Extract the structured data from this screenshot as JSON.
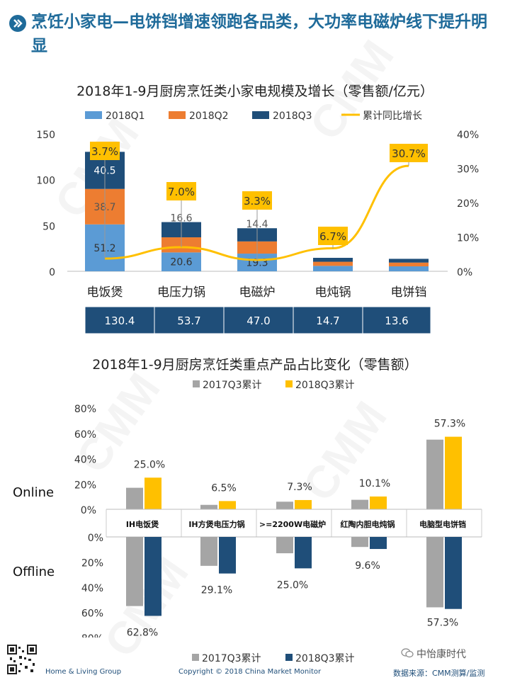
{
  "page": {
    "title": "烹饪小家电—电饼铛增速领跑各品类，大功率电磁炉线下提升明显"
  },
  "colors": {
    "title": "#1f6b9a",
    "q1": "#5b9bd5",
    "q2": "#ed7d31",
    "q3": "#1f4e79",
    "growth": "#ffc000",
    "gray": "#a5a5a5",
    "navy": "#1f4e79",
    "yellow": "#ffc000",
    "total_bg": "#1f4e79"
  },
  "chart_data": [
    {
      "type": "bar",
      "stacked": true,
      "title": "2018年1-9月厨房烹饪类小家电规模及增长（零售额/亿元）",
      "categories": [
        "电饭煲",
        "电压力锅",
        "电磁炉",
        "电炖锅",
        "电饼铛"
      ],
      "series": [
        {
          "name": "2018Q1",
          "values": [
            51.2,
            20.6,
            19.3,
            5.9,
            5.4
          ],
          "labels": [
            "51.2",
            "20.6",
            "19.3",
            "",
            ""
          ]
        },
        {
          "name": "2018Q2",
          "values": [
            38.7,
            16.5,
            13.3,
            4.5,
            4.1
          ],
          "labels": [
            "38.7",
            "",
            "",
            "",
            ""
          ]
        },
        {
          "name": "2018Q3",
          "values": [
            40.5,
            16.6,
            14.4,
            4.3,
            4.1
          ],
          "labels": [
            "40.5",
            "16.6",
            "14.4",
            "",
            ""
          ]
        }
      ],
      "line": {
        "name": "累计同比增长",
        "values": [
          3.7,
          7.0,
          3.3,
          6.7,
          30.7
        ],
        "labels": [
          "3.7%",
          "7.0%",
          "3.3%",
          "6.7%",
          "30.7%"
        ]
      },
      "totals": [
        "130.4",
        "53.7",
        "47.0",
        "14.7",
        "13.6"
      ],
      "ylim": [
        0,
        150
      ],
      "yticks": [
        "0",
        "50",
        "100",
        "150"
      ],
      "y2lim": [
        0,
        40
      ],
      "y2ticks": [
        "0%",
        "10%",
        "20%",
        "30%",
        "40%"
      ],
      "legend": "top"
    },
    {
      "type": "bar",
      "title": "2018年1-9月厨房烹饪类重点产品占比变化（零售额）",
      "categories": [
        "IH电饭煲",
        "IH方煲电压力锅",
        ">=2200W电磁炉",
        "红陶内胆电炖锅",
        "电脑型电饼铛"
      ],
      "online": {
        "label": "Online",
        "series": [
          {
            "name": "2017Q3累计",
            "values": [
              17.0,
              3.5,
              6.0,
              7.5,
              55.0
            ]
          },
          {
            "name": "2018Q3累计",
            "values": [
              25.0,
              6.5,
              7.3,
              10.1,
              57.3
            ],
            "labels": [
              "25.0%",
              "6.5%",
              "7.3%",
              "10.1%",
              "57.3%"
            ]
          }
        ],
        "yticks": [
          "0%",
          "20%",
          "40%",
          "60%",
          "80%"
        ],
        "ylim": [
          0,
          80
        ]
      },
      "offline": {
        "label": "Offline",
        "series": [
          {
            "name": "2017Q3累计",
            "values": [
              55.0,
              23.0,
              13.0,
              8.0,
              56.0
            ]
          },
          {
            "name": "2018Q3累计",
            "values": [
              62.8,
              29.1,
              25.0,
              9.6,
              57.3
            ],
            "labels": [
              "62.8%",
              "29.1%",
              "25.0%",
              "9.6%",
              "57.3%"
            ]
          }
        ],
        "yticks": [
          "0%",
          "20%",
          "40%",
          "60%",
          "80%"
        ],
        "ylim": [
          0,
          80
        ]
      },
      "legend": "top and bottom"
    }
  ],
  "footer": {
    "left": "Home & Living Group",
    "copyright": "Copyright © 2018 China Market Monitor",
    "brand": "中怡康时代",
    "source": "数据来源：CMM测算/监测"
  },
  "watermark": "CMM"
}
